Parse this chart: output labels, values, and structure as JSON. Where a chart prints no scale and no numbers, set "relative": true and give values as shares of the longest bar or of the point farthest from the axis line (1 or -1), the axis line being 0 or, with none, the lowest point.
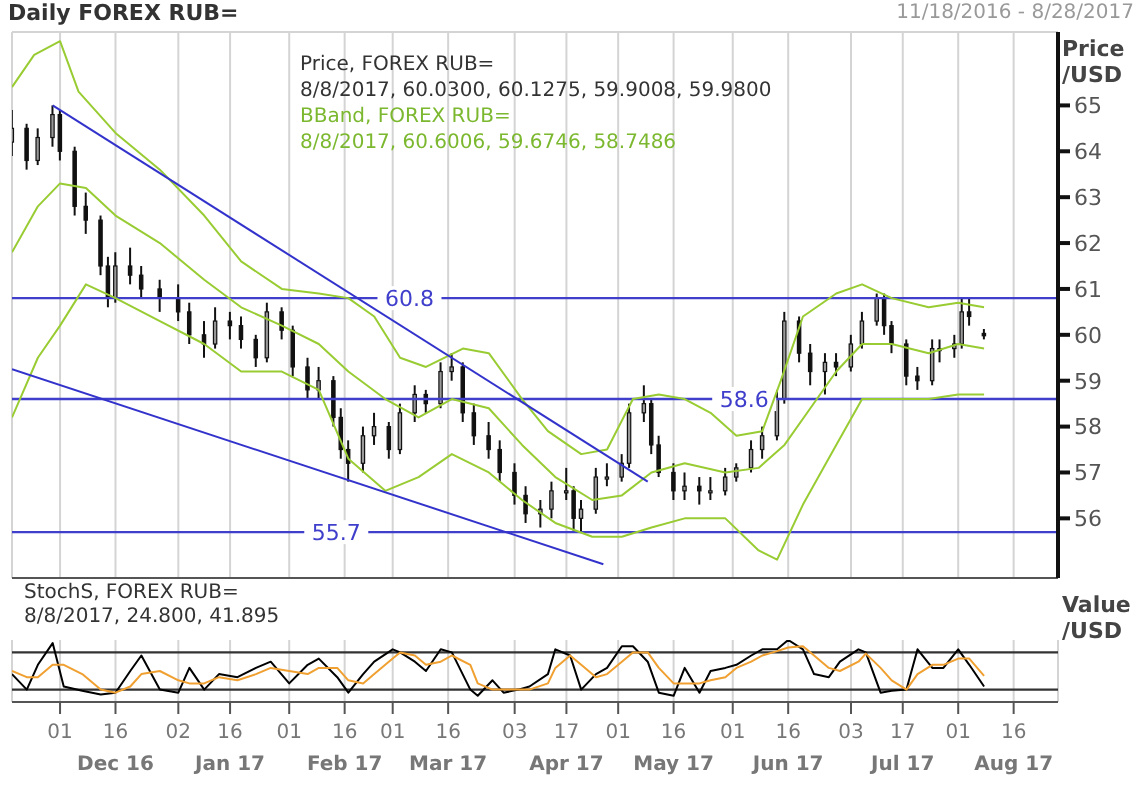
{
  "chart_data": [
    {
      "type": "candlestick",
      "title": "Daily FOREX RUB=",
      "subtitle": "11/18/2016 - 8/28/2017",
      "ylabel": "Price /USD",
      "annotations": [
        "Price, FOREX RUB=",
        "8/8/2017, 60.0300, 60.1275, 59.9008, 59.9800",
        "BBand, FOREX RUB=",
        "8/8/2017, 60.6006, 59.6746, 58.7486"
      ],
      "x": [
        "2016-11-18",
        "2016-11-22",
        "2016-11-25",
        "2016-11-29",
        "2016-12-01",
        "2016-12-05",
        "2016-12-08",
        "2016-12-12",
        "2016-12-14",
        "2016-12-16",
        "2016-12-20",
        "2016-12-23",
        "2016-12-28",
        "2017-01-02",
        "2017-01-05",
        "2017-01-09",
        "2017-01-12",
        "2017-01-16",
        "2017-01-19",
        "2017-01-23",
        "2017-01-26",
        "2017-01-30",
        "2017-02-02",
        "2017-02-06",
        "2017-02-09",
        "2017-02-13",
        "2017-02-15",
        "2017-02-17",
        "2017-02-21",
        "2017-02-24",
        "2017-02-28",
        "2017-03-03",
        "2017-03-07",
        "2017-03-10",
        "2017-03-14",
        "2017-03-17",
        "2017-03-20",
        "2017-03-23",
        "2017-03-27",
        "2017-03-30",
        "2017-04-03",
        "2017-04-06",
        "2017-04-10",
        "2017-04-13",
        "2017-04-17",
        "2017-04-19",
        "2017-04-21",
        "2017-04-25",
        "2017-04-28",
        "2017-05-02",
        "2017-05-04",
        "2017-05-08",
        "2017-05-10",
        "2017-05-12",
        "2017-05-16",
        "2017-05-19",
        "2017-05-23",
        "2017-05-26",
        "2017-05-30",
        "2017-06-02",
        "2017-06-06",
        "2017-06-09",
        "2017-06-13",
        "2017-06-15",
        "2017-06-19",
        "2017-06-22",
        "2017-06-26",
        "2017-06-29",
        "2017-07-03",
        "2017-07-06",
        "2017-07-10",
        "2017-07-12",
        "2017-07-14",
        "2017-07-18",
        "2017-07-21",
        "2017-07-25",
        "2017-07-27",
        "2017-07-31",
        "2017-08-02",
        "2017-08-04",
        "2017-08-08"
      ],
      "ohlc": [
        [
          64.2,
          64.9,
          63.9,
          64.5
        ],
        [
          64.5,
          64.6,
          63.6,
          63.8
        ],
        [
          63.8,
          64.5,
          63.7,
          64.3
        ],
        [
          64.3,
          65.0,
          64.1,
          64.8
        ],
        [
          64.8,
          64.9,
          63.8,
          64.0
        ],
        [
          64.0,
          64.1,
          62.6,
          62.8
        ],
        [
          62.8,
          63.1,
          62.2,
          62.5
        ],
        [
          62.5,
          62.6,
          61.3,
          61.5
        ],
        [
          61.5,
          61.7,
          60.6,
          60.8
        ],
        [
          60.8,
          61.8,
          60.7,
          61.5
        ],
        [
          61.5,
          61.9,
          61.1,
          61.3
        ],
        [
          61.3,
          61.5,
          60.8,
          61.0
        ],
        [
          61.0,
          61.2,
          60.5,
          60.8
        ],
        [
          60.8,
          61.1,
          60.3,
          60.5
        ],
        [
          60.5,
          60.7,
          59.8,
          60.0
        ],
        [
          60.0,
          60.3,
          59.5,
          59.8
        ],
        [
          59.8,
          60.6,
          59.7,
          60.3
        ],
        [
          60.3,
          60.5,
          59.9,
          60.2
        ],
        [
          60.2,
          60.4,
          59.7,
          59.9
        ],
        [
          59.9,
          60.0,
          59.3,
          59.5
        ],
        [
          59.5,
          60.7,
          59.4,
          60.5
        ],
        [
          60.5,
          60.6,
          59.9,
          60.1
        ],
        [
          60.1,
          60.2,
          59.1,
          59.3
        ],
        [
          59.3,
          59.5,
          58.6,
          58.8
        ],
        [
          58.8,
          59.3,
          58.6,
          59.0
        ],
        [
          59.0,
          59.1,
          58.0,
          58.2
        ],
        [
          58.2,
          58.4,
          57.3,
          57.5
        ],
        [
          57.5,
          57.7,
          56.8,
          57.2
        ],
        [
          57.2,
          58.0,
          57.0,
          57.8
        ],
        [
          57.8,
          58.3,
          57.6,
          58.0
        ],
        [
          58.0,
          58.1,
          57.3,
          57.5
        ],
        [
          57.5,
          58.5,
          57.4,
          58.3
        ],
        [
          58.3,
          58.9,
          58.1,
          58.7
        ],
        [
          58.7,
          58.8,
          58.3,
          58.5
        ],
        [
          58.5,
          59.4,
          58.4,
          59.2
        ],
        [
          59.2,
          59.6,
          59.0,
          59.3
        ],
        [
          59.3,
          59.4,
          58.1,
          58.3
        ],
        [
          58.3,
          58.5,
          57.6,
          57.8
        ],
        [
          57.8,
          58.1,
          57.3,
          57.5
        ],
        [
          57.5,
          57.7,
          56.8,
          57.0
        ],
        [
          57.0,
          57.2,
          56.3,
          56.5
        ],
        [
          56.5,
          56.7,
          55.9,
          56.1
        ],
        [
          56.1,
          56.4,
          55.8,
          56.2
        ],
        [
          56.2,
          56.8,
          56.0,
          56.6
        ],
        [
          56.6,
          57.1,
          56.4,
          56.6
        ],
        [
          56.6,
          56.7,
          55.7,
          56.0
        ],
        [
          56.0,
          56.4,
          55.7,
          56.2
        ],
        [
          56.2,
          57.1,
          56.1,
          56.9
        ],
        [
          56.9,
          57.2,
          56.7,
          56.9
        ],
        [
          56.9,
          57.4,
          56.8,
          57.2
        ],
        [
          57.2,
          58.5,
          57.1,
          58.3
        ],
        [
          58.3,
          58.9,
          58.1,
          58.5
        ],
        [
          58.5,
          58.6,
          57.4,
          57.6
        ],
        [
          57.6,
          57.8,
          56.9,
          57.0
        ],
        [
          57.0,
          57.2,
          56.4,
          56.6
        ],
        [
          56.6,
          57.0,
          56.4,
          56.7
        ],
        [
          56.7,
          56.9,
          56.3,
          56.6
        ],
        [
          56.6,
          56.9,
          56.4,
          56.6
        ],
        [
          56.6,
          57.1,
          56.5,
          56.9
        ],
        [
          56.9,
          57.2,
          56.8,
          57.1
        ],
        [
          57.1,
          57.7,
          57.0,
          57.5
        ],
        [
          57.5,
          58.0,
          57.3,
          57.8
        ],
        [
          57.8,
          58.8,
          57.7,
          58.6
        ],
        [
          58.6,
          60.5,
          58.5,
          60.3
        ],
        [
          60.3,
          60.4,
          59.4,
          59.6
        ],
        [
          59.6,
          59.8,
          58.9,
          59.2
        ],
        [
          59.2,
          59.6,
          58.7,
          59.4
        ],
        [
          59.4,
          59.6,
          59.1,
          59.3
        ],
        [
          59.3,
          60.0,
          59.2,
          59.8
        ],
        [
          59.8,
          60.5,
          59.7,
          60.3
        ],
        [
          60.3,
          60.9,
          60.2,
          60.8
        ],
        [
          60.8,
          60.9,
          60.0,
          60.2
        ],
        [
          60.2,
          60.3,
          59.6,
          59.8
        ],
        [
          59.8,
          59.9,
          58.9,
          59.1
        ],
        [
          59.1,
          59.3,
          58.8,
          59.0
        ],
        [
          59.0,
          59.9,
          58.9,
          59.7
        ],
        [
          59.7,
          59.9,
          59.4,
          59.7
        ],
        [
          59.7,
          60.0,
          59.5,
          59.8
        ],
        [
          59.8,
          60.8,
          59.7,
          60.5
        ],
        [
          60.5,
          60.8,
          60.2,
          60.4
        ],
        [
          60.03,
          60.1275,
          59.9008,
          59.98
        ]
      ],
      "series": [
        {
          "type": "line",
          "color": "#99cc33",
          "x": [
            "2016-11-18",
            "2016-11-24",
            "2016-12-01",
            "2016-12-06",
            "2016-12-16",
            "2016-12-28",
            "2017-01-09",
            "2017-01-19",
            "2017-01-30",
            "2017-02-09",
            "2017-02-17",
            "2017-02-24",
            "2017-03-03",
            "2017-03-10",
            "2017-03-20",
            "2017-03-27",
            "2017-04-05",
            "2017-04-12",
            "2017-04-21",
            "2017-04-28",
            "2017-05-05",
            "2017-05-12",
            "2017-05-19",
            "2017-05-26",
            "2017-06-02",
            "2017-06-09",
            "2017-06-14",
            "2017-06-20",
            "2017-06-29",
            "2017-07-06",
            "2017-07-14",
            "2017-07-24",
            "2017-08-01",
            "2017-08-08"
          ],
          "values": [
            65.4,
            66.1,
            66.4,
            65.3,
            64.4,
            63.6,
            62.6,
            61.6,
            61.0,
            60.9,
            60.8,
            60.4,
            59.5,
            59.3,
            59.7,
            59.6,
            58.6,
            57.9,
            57.4,
            57.5,
            58.6,
            58.7,
            58.6,
            58.3,
            57.8,
            57.9,
            59.0,
            60.4,
            60.9,
            61.1,
            60.8,
            60.6,
            60.7,
            60.6
          ]
        },
        {
          "type": "line",
          "color": "#99cc33",
          "x": [
            "2016-11-18",
            "2016-11-25",
            "2016-12-01",
            "2016-12-08",
            "2016-12-16",
            "2016-12-28",
            "2017-01-09",
            "2017-01-19",
            "2017-01-30",
            "2017-02-09",
            "2017-02-17",
            "2017-02-27",
            "2017-03-08",
            "2017-03-17",
            "2017-03-27",
            "2017-04-05",
            "2017-04-14",
            "2017-04-24",
            "2017-05-02",
            "2017-05-10",
            "2017-05-19",
            "2017-05-30",
            "2017-06-08",
            "2017-06-15",
            "2017-06-22",
            "2017-06-29",
            "2017-07-06",
            "2017-07-14",
            "2017-07-24",
            "2017-08-01",
            "2017-08-08"
          ],
          "values": [
            61.8,
            62.8,
            63.3,
            63.2,
            62.6,
            62.0,
            61.2,
            60.6,
            60.2,
            59.8,
            59.2,
            58.6,
            58.2,
            58.6,
            58.4,
            57.6,
            56.9,
            56.4,
            56.5,
            57.0,
            57.2,
            57.0,
            57.1,
            57.6,
            58.4,
            59.2,
            59.8,
            59.8,
            59.6,
            59.8,
            59.7
          ]
        },
        {
          "type": "line",
          "color": "#99cc33",
          "x": [
            "2016-11-18",
            "2016-11-25",
            "2016-12-01",
            "2016-12-08",
            "2016-12-16",
            "2016-12-28",
            "2017-01-09",
            "2017-01-19",
            "2017-01-30",
            "2017-02-09",
            "2017-02-17",
            "2017-02-27",
            "2017-03-08",
            "2017-03-17",
            "2017-03-27",
            "2017-04-05",
            "2017-04-14",
            "2017-04-24",
            "2017-05-02",
            "2017-05-10",
            "2017-05-19",
            "2017-05-30",
            "2017-06-08",
            "2017-06-13",
            "2017-06-20",
            "2017-06-29",
            "2017-07-06",
            "2017-07-14",
            "2017-07-24",
            "2017-08-01",
            "2017-08-08"
          ],
          "values": [
            58.2,
            59.5,
            60.2,
            61.1,
            60.8,
            60.3,
            59.8,
            59.2,
            59.2,
            58.8,
            57.3,
            56.6,
            56.9,
            57.4,
            57.0,
            56.4,
            55.9,
            55.6,
            55.6,
            55.8,
            56.0,
            56.0,
            55.3,
            55.1,
            56.3,
            57.6,
            58.6,
            58.6,
            58.6,
            58.7,
            58.7
          ]
        },
        {
          "type": "line",
          "color": "#3333cc",
          "x": [
            "2016-11-29",
            "2017-05-09"
          ],
          "values": [
            65.0,
            56.8
          ]
        },
        {
          "type": "line",
          "color": "#3333cc",
          "x": [
            "2016-11-18",
            "2017-04-27"
          ],
          "values": [
            59.25,
            55.0
          ]
        }
      ],
      "ref_lines": [
        {
          "axis": "y",
          "value": 60.8,
          "label": "60.8",
          "color": "#3f3fcc"
        },
        {
          "axis": "y",
          "value": 58.6,
          "label": "58.6",
          "color": "#3f3fcc"
        },
        {
          "axis": "y",
          "value": 55.7,
          "label": "55.7",
          "color": "#3f3fcc"
        }
      ],
      "xlim": [
        "2016-11-18",
        "2017-08-28"
      ],
      "xticks": [
        {
          "value": "2016-12-01",
          "label": null
        },
        {
          "value": "2016-12-16",
          "label": null
        },
        {
          "value": "2017-01-02",
          "label": null
        },
        {
          "value": "2017-01-16",
          "label": null
        },
        {
          "value": "2017-02-01",
          "label": null
        },
        {
          "value": "2017-02-16",
          "label": null
        },
        {
          "value": "2017-03-01",
          "label": null
        },
        {
          "value": "2017-03-16",
          "label": null
        },
        {
          "value": "2017-04-03",
          "label": null
        },
        {
          "value": "2017-04-17",
          "label": null
        },
        {
          "value": "2017-05-01",
          "label": null
        },
        {
          "value": "2017-05-16",
          "label": null
        },
        {
          "value": "2017-06-01",
          "label": null
        },
        {
          "value": "2017-06-16",
          "label": null
        },
        {
          "value": "2017-07-03",
          "label": null
        },
        {
          "value": "2017-07-17",
          "label": null
        },
        {
          "value": "2017-08-01",
          "label": null
        },
        {
          "value": "2017-08-16",
          "label": null
        }
      ],
      "ylim": [
        54.7,
        66.6
      ],
      "yticks": [
        56,
        57,
        58,
        59,
        60,
        61,
        62,
        63,
        64,
        65
      ],
      "grid": true,
      "tick_labels": "y"
    },
    {
      "type": "line",
      "ylabel": "Value /USD",
      "relative": true,
      "annotations": [
        "StochS, FOREX RUB=",
        "8/8/2017, 24.800, 41.895"
      ],
      "x": [
        "2016-11-18",
        "2016-11-22",
        "2016-11-25",
        "2016-11-29",
        "2016-12-02",
        "2016-12-07",
        "2016-12-12",
        "2016-12-16",
        "2016-12-20",
        "2016-12-23",
        "2016-12-28",
        "2017-01-02",
        "2017-01-05",
        "2017-01-09",
        "2017-01-13",
        "2017-01-18",
        "2017-01-23",
        "2017-01-27",
        "2017-02-01",
        "2017-02-06",
        "2017-02-09",
        "2017-02-14",
        "2017-02-17",
        "2017-02-21",
        "2017-02-24",
        "2017-03-01",
        "2017-03-03",
        "2017-03-07",
        "2017-03-10",
        "2017-03-14",
        "2017-03-17",
        "2017-03-22",
        "2017-03-24",
        "2017-03-28",
        "2017-03-31",
        "2017-04-04",
        "2017-04-07",
        "2017-04-12",
        "2017-04-14",
        "2017-04-18",
        "2017-04-21",
        "2017-04-25",
        "2017-04-28",
        "2017-05-02",
        "2017-05-05",
        "2017-05-09",
        "2017-05-12",
        "2017-05-16",
        "2017-05-19",
        "2017-05-23",
        "2017-05-26",
        "2017-05-30",
        "2017-06-02",
        "2017-06-06",
        "2017-06-09",
        "2017-06-13",
        "2017-06-16",
        "2017-06-20",
        "2017-06-23",
        "2017-06-27",
        "2017-06-30",
        "2017-07-05",
        "2017-07-07",
        "2017-07-11",
        "2017-07-14",
        "2017-07-18",
        "2017-07-21",
        "2017-07-25",
        "2017-07-28",
        "2017-08-01",
        "2017-08-04",
        "2017-08-08"
      ],
      "series": [
        {
          "color": "#000000",
          "values": [
            0.45,
            0.2,
            0.6,
            0.95,
            0.25,
            0.18,
            0.12,
            0.15,
            0.5,
            0.75,
            0.2,
            0.15,
            0.55,
            0.2,
            0.45,
            0.4,
            0.55,
            0.65,
            0.3,
            0.6,
            0.7,
            0.4,
            0.15,
            0.45,
            0.65,
            0.85,
            0.8,
            0.65,
            0.5,
            0.85,
            0.8,
            0.2,
            0.1,
            0.35,
            0.15,
            0.2,
            0.25,
            0.45,
            0.85,
            0.75,
            0.2,
            0.45,
            0.55,
            0.9,
            0.9,
            0.65,
            0.15,
            0.1,
            0.55,
            0.15,
            0.5,
            0.55,
            0.6,
            0.75,
            0.85,
            0.85,
            1.0,
            0.85,
            0.45,
            0.4,
            0.65,
            0.85,
            0.8,
            0.15,
            0.18,
            0.2,
            0.85,
            0.55,
            0.55,
            0.85,
            0.6,
            0.25
          ]
        },
        {
          "color": "#f0a030",
          "values": [
            0.5,
            0.4,
            0.4,
            0.6,
            0.6,
            0.45,
            0.2,
            0.15,
            0.25,
            0.45,
            0.5,
            0.35,
            0.3,
            0.3,
            0.4,
            0.35,
            0.45,
            0.55,
            0.5,
            0.45,
            0.55,
            0.55,
            0.35,
            0.3,
            0.45,
            0.7,
            0.8,
            0.75,
            0.6,
            0.65,
            0.75,
            0.6,
            0.3,
            0.2,
            0.2,
            0.2,
            0.2,
            0.3,
            0.55,
            0.75,
            0.6,
            0.4,
            0.45,
            0.65,
            0.8,
            0.8,
            0.55,
            0.3,
            0.3,
            0.3,
            0.35,
            0.4,
            0.55,
            0.65,
            0.75,
            0.82,
            0.88,
            0.9,
            0.75,
            0.55,
            0.5,
            0.65,
            0.78,
            0.55,
            0.35,
            0.2,
            0.45,
            0.6,
            0.6,
            0.7,
            0.7,
            0.42
          ]
        }
      ],
      "ref_lines": [
        {
          "axis": "y",
          "value": 0.8,
          "color": "#333333"
        },
        {
          "axis": "y",
          "value": 0.2,
          "color": "#333333"
        }
      ],
      "xlim": [
        "2016-11-18",
        "2017-08-28"
      ],
      "xticks": [
        {
          "value": "2016-12-01",
          "label": "01"
        },
        {
          "value": "2016-12-16",
          "label": "16\nDec 16"
        },
        {
          "value": "2017-01-02",
          "label": "02"
        },
        {
          "value": "2017-01-16",
          "label": "16\nJan 17"
        },
        {
          "value": "2017-02-01",
          "label": "01"
        },
        {
          "value": "2017-02-16",
          "label": "16\nFeb 17"
        },
        {
          "value": "2017-03-01",
          "label": "01"
        },
        {
          "value": "2017-03-16",
          "label": "16\nMar 17"
        },
        {
          "value": "2017-04-03",
          "label": "03"
        },
        {
          "value": "2017-04-17",
          "label": "17\nApr 17"
        },
        {
          "value": "2017-05-01",
          "label": "01"
        },
        {
          "value": "2017-05-16",
          "label": "16\nMay 17"
        },
        {
          "value": "2017-06-01",
          "label": "01"
        },
        {
          "value": "2017-06-16",
          "label": "16\nJun 17"
        },
        {
          "value": "2017-07-03",
          "label": "03"
        },
        {
          "value": "2017-07-17",
          "label": "17\nJul 17"
        },
        {
          "value": "2017-08-01",
          "label": "01"
        },
        {
          "value": "2017-08-16",
          "label": "16\nAug 17"
        }
      ],
      "grid": "x",
      "tick_labels": "x"
    }
  ]
}
